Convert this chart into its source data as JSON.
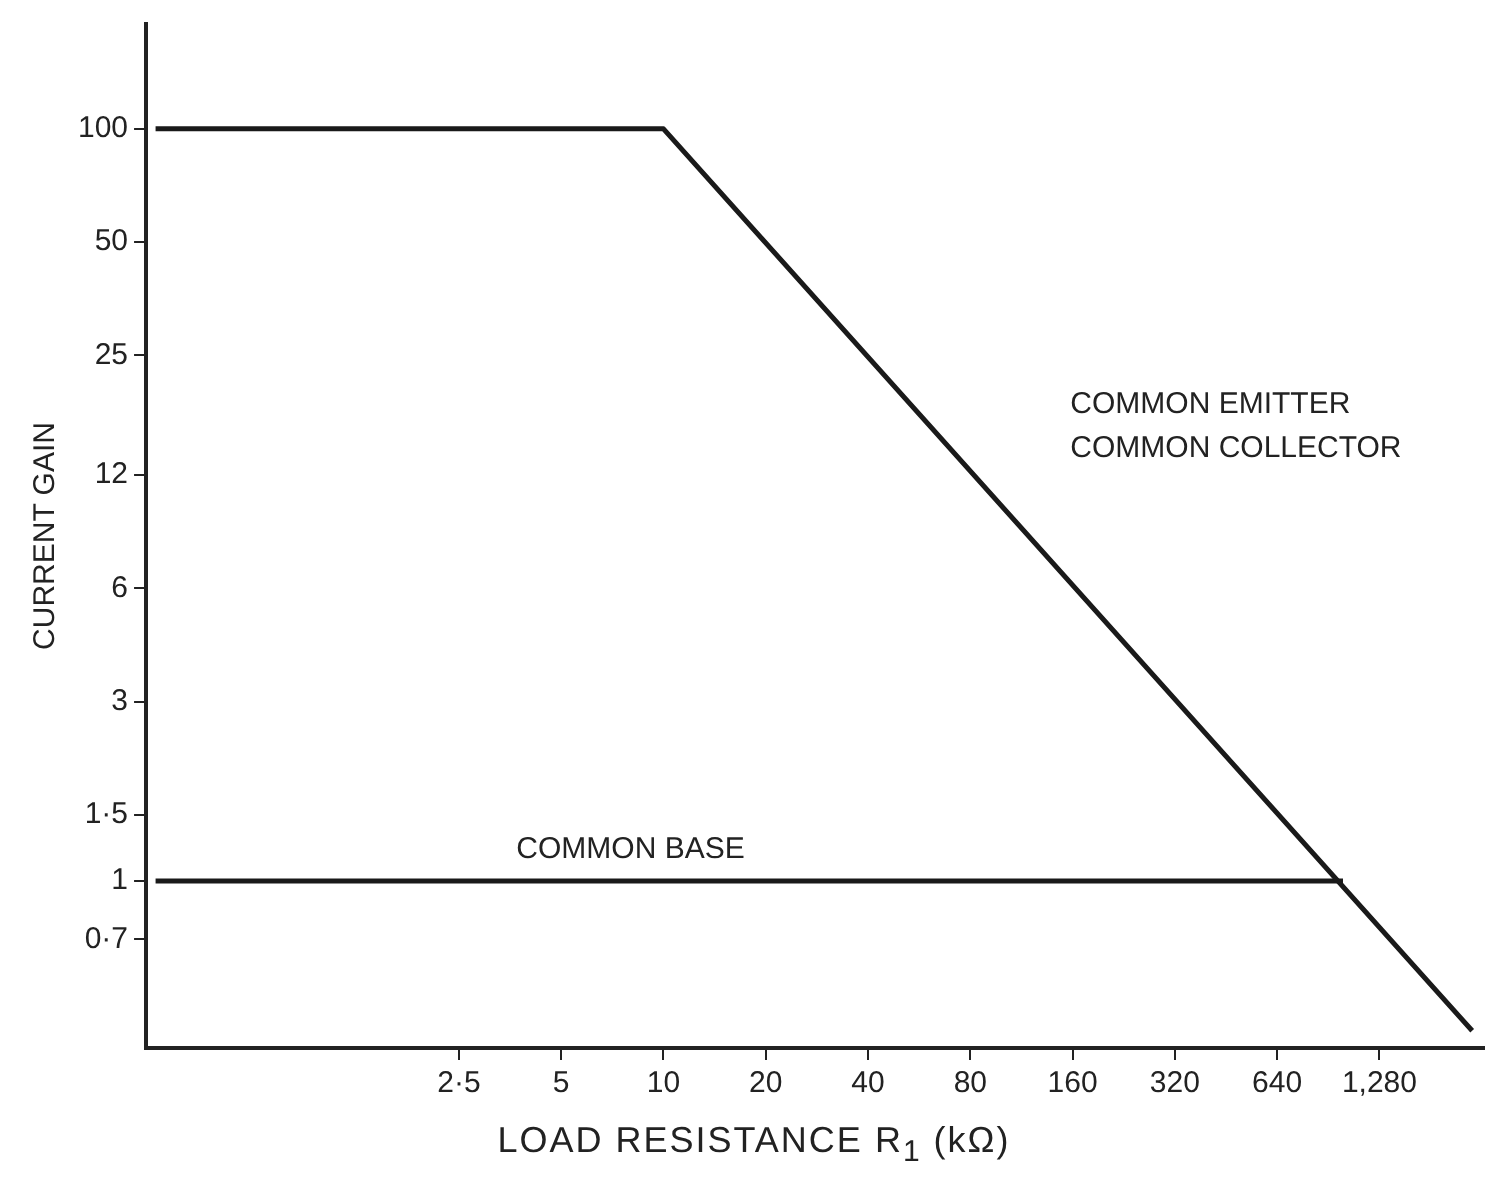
{
  "chart_data": {
    "type": "line",
    "xlabel": "LOAD RESISTANCE R$_{1}$ (kΩ)",
    "ylabel": "CURRENT GAIN",
    "log": "xy",
    "grid": false,
    "legend": false,
    "marker": "none",
    "line_style": "solid",
    "xlim": [
      0.32,
      2600
    ],
    "ylim": [
      0.36,
      190
    ],
    "xticks": [
      {
        "value": 2.5,
        "label": "2·5"
      },
      5,
      10,
      20,
      40,
      80,
      160,
      320,
      640,
      {
        "value": 1280,
        "label": "1,280"
      }
    ],
    "yticks": [
      {
        "value": 0.7,
        "label": "0·7"
      },
      1,
      {
        "value": 1.5,
        "label": "1·5"
      },
      3,
      6,
      12,
      25,
      50,
      100
    ],
    "series": [
      {
        "name": "COMMON EMITTER COMMON COLLECTOR",
        "color": "#1a1a1a",
        "x": [
          0.32,
          10,
          2400
        ],
        "values": [
          100,
          100,
          0.4
        ]
      },
      {
        "name": "COMMON BASE",
        "color": "#1a1a1a",
        "x": [
          0.32,
          1000
        ],
        "values": [
          1,
          1
        ]
      }
    ]
  }
}
